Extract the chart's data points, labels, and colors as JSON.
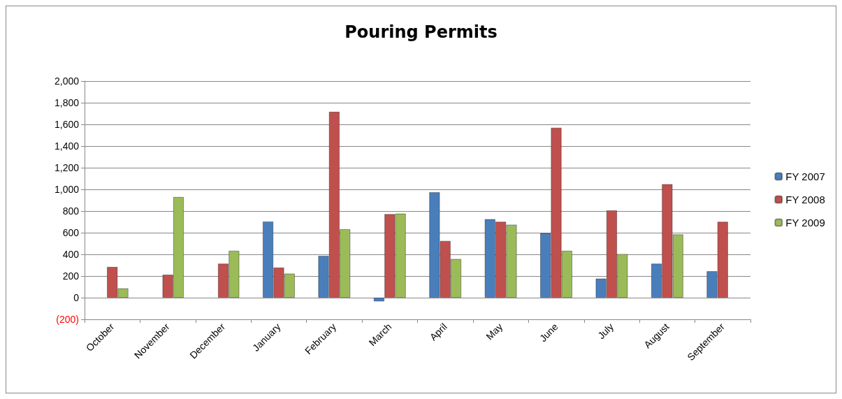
{
  "chart_data": {
    "type": "bar",
    "title": "Pouring Permits",
    "categories": [
      "October",
      "November",
      "December",
      "January",
      "February",
      "March",
      "April",
      "May",
      "June",
      "July",
      "August",
      "September"
    ],
    "series": [
      {
        "name": "FY 2007",
        "color": "#4a7ebb",
        "values": [
          null,
          null,
          null,
          704,
          387,
          -35,
          975,
          726,
          596,
          177,
          315,
          245
        ]
      },
      {
        "name": "FY 2008",
        "color": "#c0504d",
        "values": [
          285,
          213,
          315,
          279,
          1717,
          772,
          525,
          702,
          1570,
          806,
          1049,
          702
        ]
      },
      {
        "name": "FY 2009",
        "color": "#9bbb59",
        "values": [
          87,
          930,
          434,
          223,
          632,
          777,
          358,
          675,
          434,
          404,
          585,
          null
        ]
      }
    ],
    "ylim": [
      -200,
      2000
    ],
    "yticks": [
      {
        "value": -200,
        "label": "(200)"
      },
      0,
      {
        "value": 200,
        "label": "200"
      },
      {
        "value": 400,
        "label": "400"
      },
      {
        "value": 600,
        "label": "600"
      },
      {
        "value": 800,
        "label": "800"
      },
      {
        "value": 1000,
        "label": "1,000"
      },
      {
        "value": 1200,
        "label": "1,200"
      },
      {
        "value": 1400,
        "label": "1,400"
      },
      {
        "value": 1600,
        "label": "1,600"
      },
      {
        "value": 1800,
        "label": "1,800"
      },
      {
        "value": 2000,
        "label": "2,000"
      }
    ],
    "grid": "y",
    "legend": "right"
  }
}
